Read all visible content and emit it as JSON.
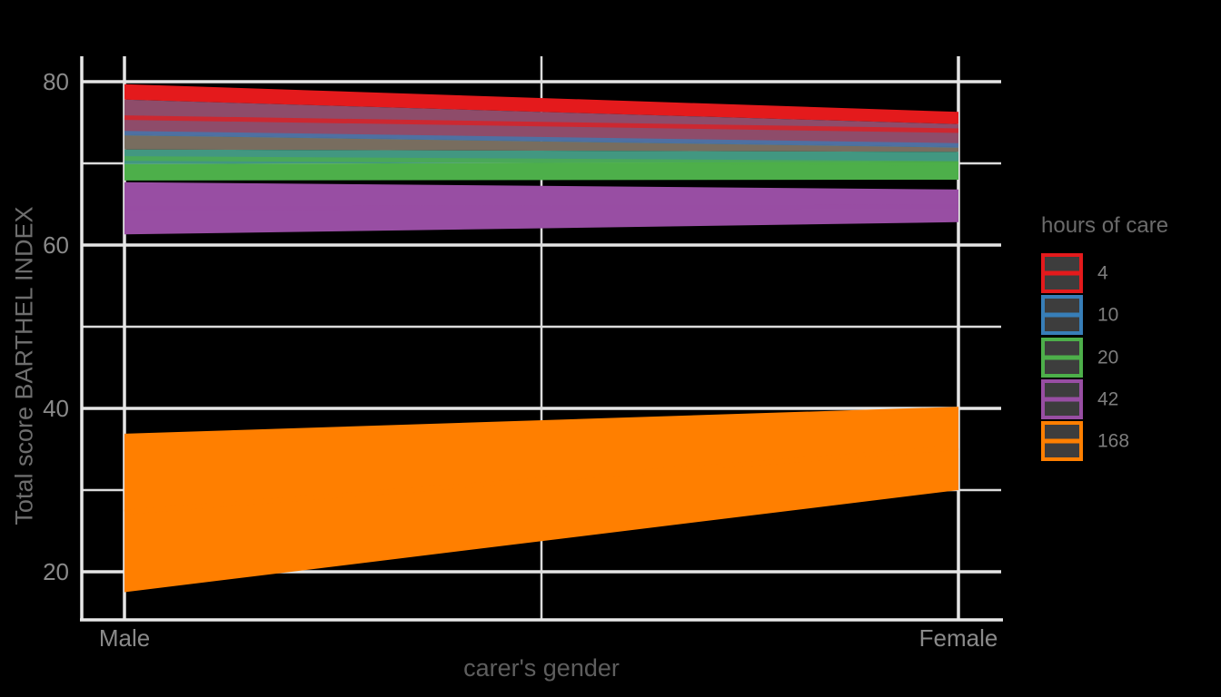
{
  "colors": {
    "background": "#000000",
    "grid_major": "#e5e5e5",
    "grid_minor": "#dcdcdc",
    "axis_line": "#e8e8e8",
    "tick_label": "#8a8a8a",
    "axis_title": "#5e5e5e",
    "legend_title": "#6b6b6b",
    "legend_label": "#7d7d7d",
    "legend_key_fill": "#3d3d3d"
  },
  "chart_data": {
    "type": "area",
    "subtype": "interaction-plot-with-confidence-ribbons",
    "title": "",
    "xlabel": "carer's gender",
    "ylabel": "Total score BARTHEL INDEX",
    "x_categories": [
      "Male",
      "Female"
    ],
    "y_ticks": [
      "80",
      "60",
      "40",
      "20"
    ],
    "y_tick_values": [
      80,
      60,
      40,
      20
    ],
    "y_minor_values": [
      70,
      50,
      30
    ],
    "ylim": [
      14,
      83.2
    ],
    "grid": true,
    "legend_title": "hours of care",
    "legend_position": "right",
    "series": [
      {
        "hours": "4",
        "color": "#e41a1c",
        "mean": [
          75.6,
          74.0
        ],
        "lower": [
          71.7,
          71.4
        ],
        "upper": [
          79.7,
          76.3
        ]
      },
      {
        "hours": "10",
        "color": "#377eb8",
        "mean": [
          73.7,
          72.2
        ],
        "lower": [
          69.9,
          70.2
        ],
        "upper": [
          77.8,
          74.8
        ]
      },
      {
        "hours": "20",
        "color": "#4daf4a",
        "mean": [
          70.6,
          70.0
        ],
        "lower": [
          67.9,
          68.0
        ],
        "upper": [
          73.5,
          72.0
        ]
      },
      {
        "hours": "42",
        "color": "#984ea3",
        "mean": [
          64.5,
          64.7
        ],
        "lower": [
          61.3,
          62.8
        ],
        "upper": [
          67.7,
          66.8
        ]
      },
      {
        "hours": "168",
        "color": "#ff7f00",
        "mean": [
          27.3,
          35.2
        ],
        "lower": [
          17.5,
          30.0
        ],
        "upper": [
          36.9,
          40.2
        ]
      }
    ]
  }
}
